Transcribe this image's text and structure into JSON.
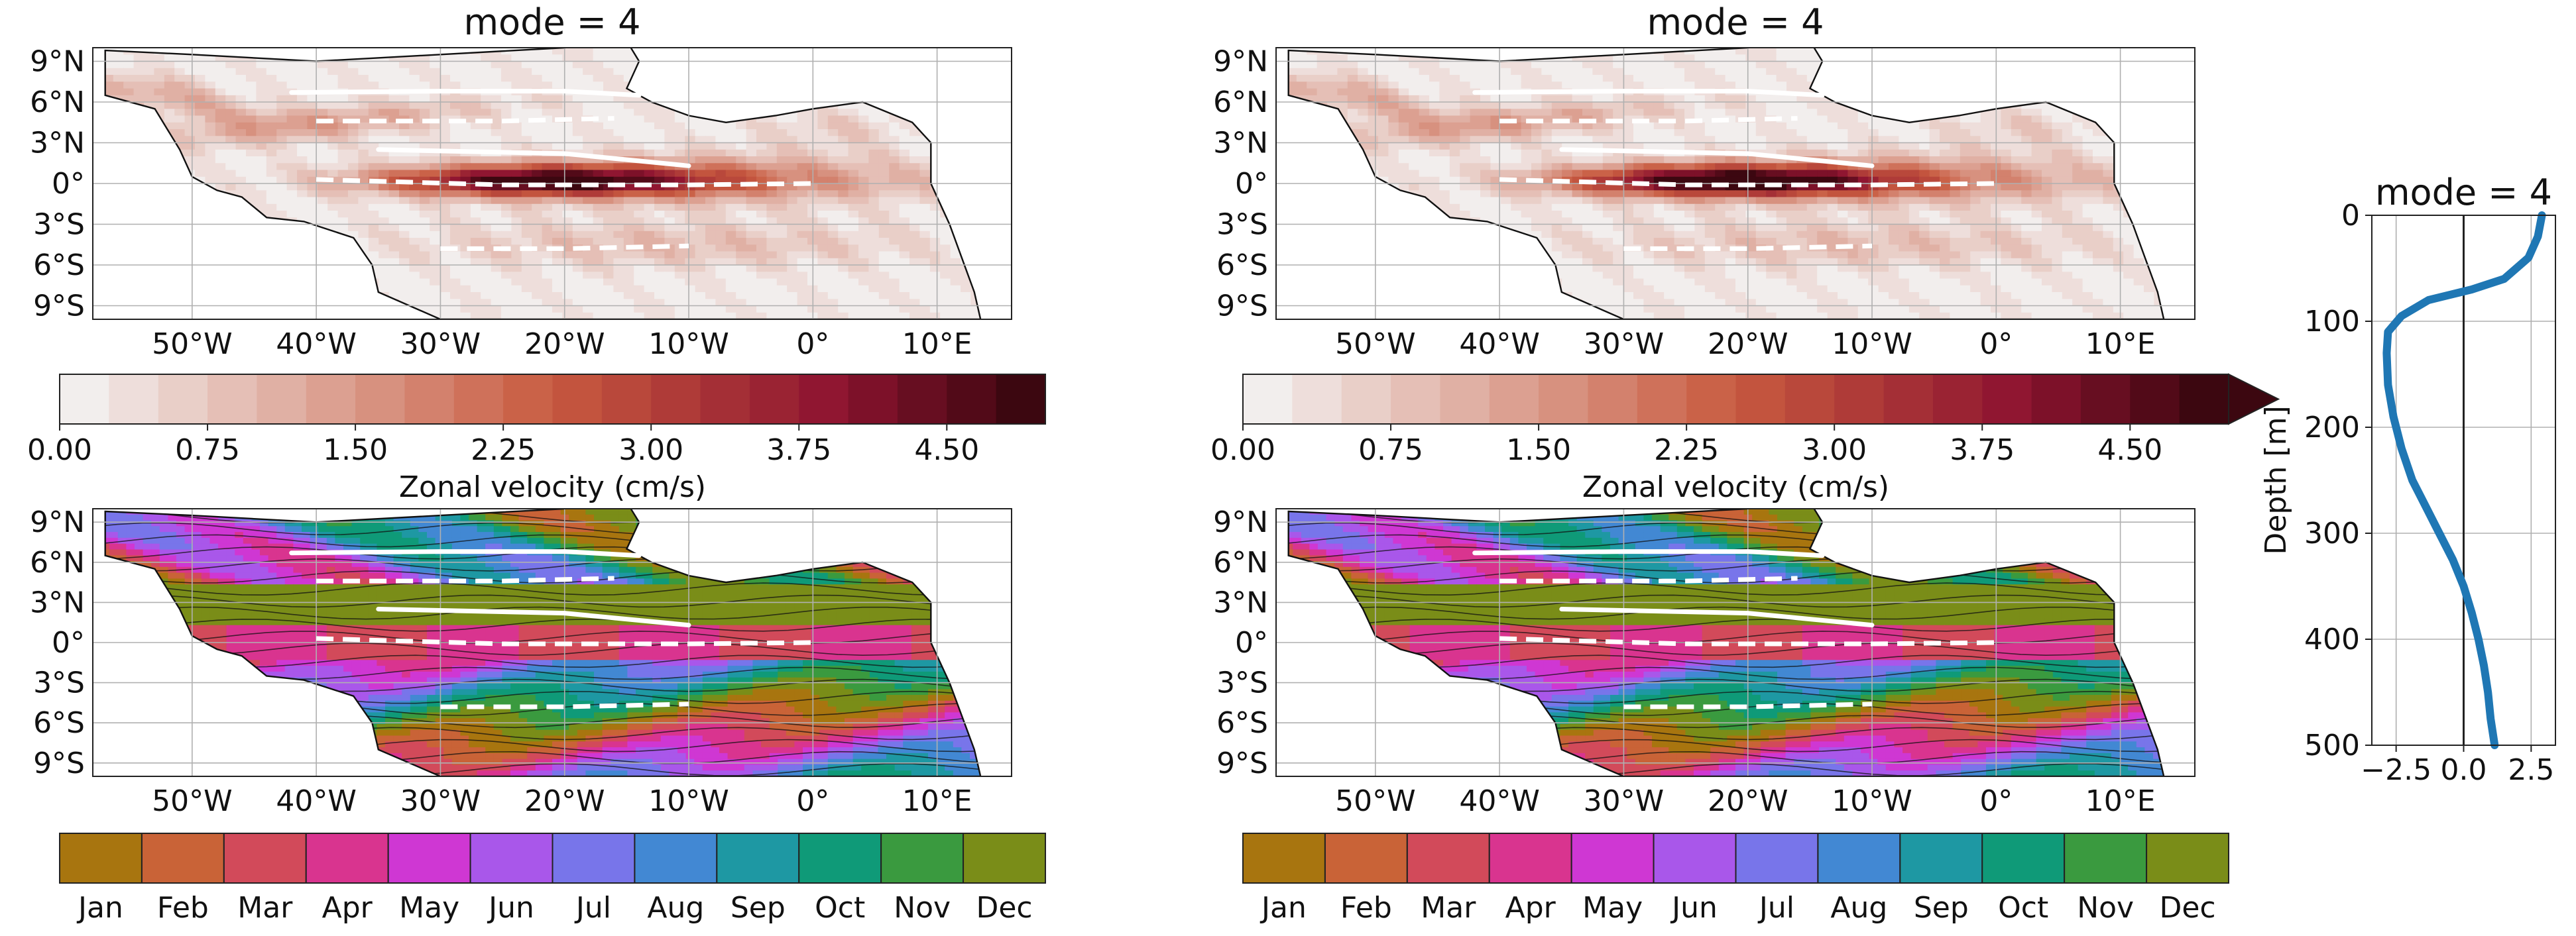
{
  "figure": {
    "panels": [
      {
        "title": "mode = 4",
        "kind": "amplitude_map"
      },
      {
        "title": "mode = 4",
        "kind": "amplitude_map"
      },
      {
        "title": "",
        "kind": "phase_map"
      },
      {
        "title": "",
        "kind": "phase_map"
      }
    ],
    "lat_ticks": [
      "9°N",
      "6°N",
      "3°N",
      "0°",
      "3°S",
      "6°S",
      "9°S"
    ],
    "lon_ticks": [
      "50°W",
      "40°W",
      "30°W",
      "20°W",
      "10°W",
      "0°",
      "10°E"
    ],
    "amplitude_colorbar": {
      "label": "Zonal velocity (cm/s)",
      "ticks": [
        "0.00",
        "0.75",
        "1.50",
        "2.25",
        "3.00",
        "3.75",
        "4.50"
      ],
      "levels": 20,
      "vmax": 5.0,
      "colors_from": "#f2eeed",
      "colors_to": "#3c0710",
      "right_panel_extend": "max"
    },
    "phase_colorbar": {
      "months": [
        "Jan",
        "Feb",
        "Mar",
        "Apr",
        "May",
        "Jun",
        "Jul",
        "Aug",
        "Sep",
        "Oct",
        "Nov",
        "Dec"
      ],
      "colors": [
        "#a8750f",
        "#c96337",
        "#d24a5a",
        "#d9348f",
        "#cf37d3",
        "#a957ea",
        "#7875ea",
        "#4288d3",
        "#1e98a3",
        "#0f9a78",
        "#3a9a3f",
        "#7a8d18"
      ]
    },
    "profile": {
      "title": "mode = 4",
      "ylabel": "Depth [m]",
      "yticks": [
        "0",
        "100",
        "200",
        "300",
        "400",
        "500"
      ],
      "xticks": [
        "−2.5",
        "0.0",
        "2.5"
      ]
    }
  },
  "chart_data": [
    {
      "type": "heatmap",
      "title": "mode = 4",
      "x_range": [
        -58,
        16
      ],
      "y_range": [
        -10,
        10
      ],
      "xlabel": "",
      "ylabel": "",
      "colorbar_label": "Zonal velocity (cm/s)",
      "zlim": [
        0,
        5
      ]
    },
    {
      "type": "heatmap",
      "title": "mode = 4",
      "x_range": [
        -58,
        16
      ],
      "y_range": [
        -10,
        10
      ],
      "xlabel": "",
      "ylabel": "",
      "colorbar_label": "Zonal velocity (cm/s)",
      "zlim": [
        0,
        5
      ]
    },
    {
      "type": "heatmap",
      "title": "",
      "x_range": [
        -58,
        16
      ],
      "y_range": [
        -10,
        10
      ],
      "colorbar_categories": [
        "Jan",
        "Feb",
        "Mar",
        "Apr",
        "May",
        "Jun",
        "Jul",
        "Aug",
        "Sep",
        "Oct",
        "Nov",
        "Dec"
      ]
    },
    {
      "type": "heatmap",
      "title": "",
      "x_range": [
        -58,
        16
      ],
      "y_range": [
        -10,
        10
      ],
      "colorbar_categories": [
        "Jan",
        "Feb",
        "Mar",
        "Apr",
        "May",
        "Jun",
        "Jul",
        "Aug",
        "Sep",
        "Oct",
        "Nov",
        "Dec"
      ]
    },
    {
      "type": "line",
      "title": "mode = 4",
      "xlabel": "",
      "ylabel": "Depth [m]",
      "xlim": [
        -3.4,
        3.4
      ],
      "ylim": [
        500,
        0
      ],
      "grid": true,
      "series": [
        {
          "x": [
            2.9,
            2.75,
            2.4,
            1.5,
            0.3,
            -1.3,
            -2.3,
            -2.8,
            -2.85,
            -2.8,
            -2.6,
            -2.3,
            -1.9,
            -1.4,
            -0.9,
            -0.4,
            0.0,
            0.3,
            0.55,
            0.75,
            0.9,
            1.0,
            1.15
          ],
          "y": [
            0,
            20,
            40,
            60,
            70,
            80,
            95,
            110,
            130,
            160,
            190,
            220,
            250,
            275,
            300,
            325,
            350,
            375,
            400,
            425,
            450,
            475,
            500
          ],
          "color": "#1f77b4"
        }
      ],
      "vline_x": 0
    }
  ]
}
